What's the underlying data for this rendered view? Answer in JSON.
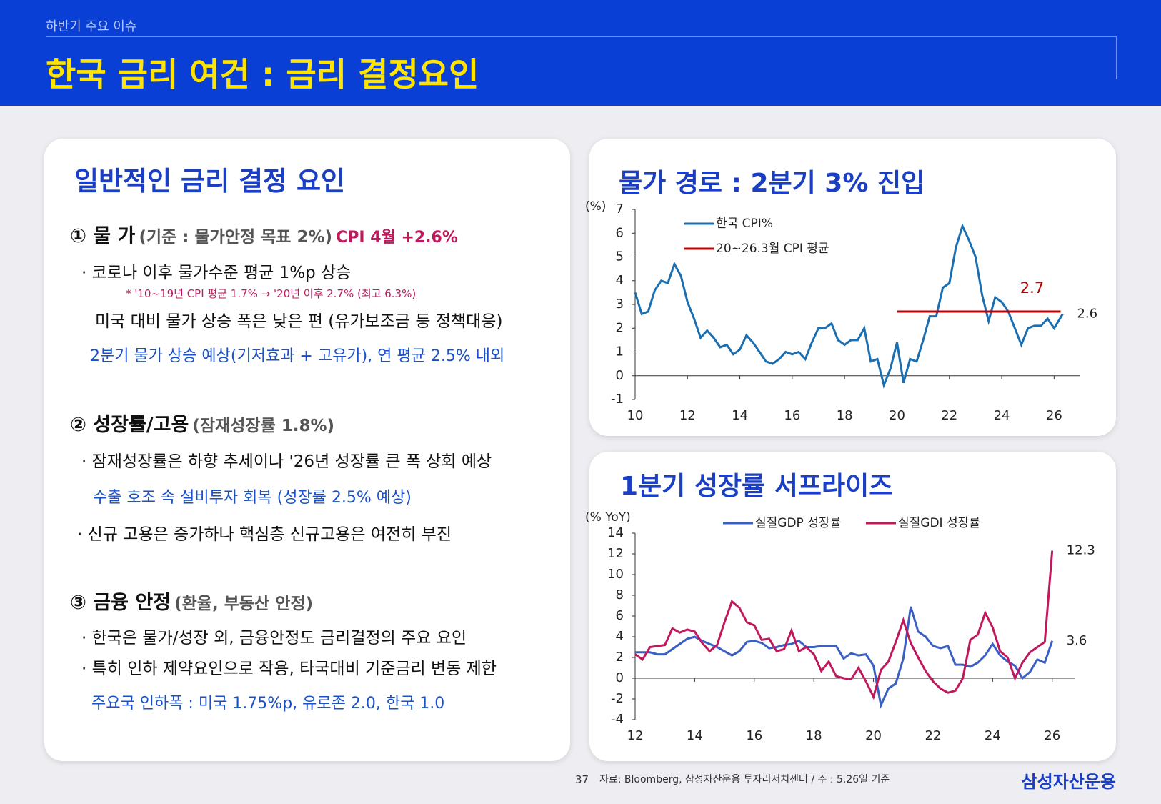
{
  "header": {
    "section": "하반기 주요 이슈",
    "title": "한국 금리 여건 : 금리 결정요인"
  },
  "left": {
    "title": "일반적인 금리 결정 요인",
    "s1": {
      "head": "① 물 가",
      "sub": "(기준 : 물가안정 목표 2%)",
      "note": "CPI 4월  +2.6%",
      "lines": [
        "· 코로나 이후 물가수준 평균 1%p 상승",
        "* '10~19년 CPI 평균 1.7% → '20년 이후 2.7% (최고 6.3%)",
        "미국 대비 물가 상승 폭은 낮은 편 (유가보조금 등 정책대응)",
        "2분기 물가 상승 예상(기저효과 + 고유가), 연 평균 2.5% 내외"
      ]
    },
    "s2": {
      "head": "② 성장률/고용",
      "sub": "(잠재성장률 1.8%)",
      "lines": [
        "· 잠재성장률은 하향 추세이나 '26년 성장률 큰 폭 상회 예상",
        "수출 호조 속 설비투자 회복 (성장률 2.5% 예상)",
        "· 신규 고용은 증가하나 핵심층 신규고용은 여전히 부진"
      ]
    },
    "s3": {
      "head": "③ 금융 안정",
      "sub": "(환율, 부동산 안정)",
      "lines": [
        "· 한국은 물가/성장 외, 금융안정도 금리결정의 주요 요인",
        "· 특히 인하 제약요인으로 작용, 타국대비 기준금리 변동 제한",
        "주요국 인하폭 : 미국 1.75%p, 유로존 2.0, 한국 1.0"
      ]
    }
  },
  "footer": {
    "page": "37",
    "source": "자료: Bloomberg, 삼성자산운용 투자리서치센터 / 주 : 5.26일 기준",
    "logo": "삼성자산운용"
  },
  "chart_data": [
    {
      "type": "line",
      "title": "물가 경로 : 2분기 3% 진입",
      "y_label": "(%)",
      "legend": "upper-left",
      "end_labels": true,
      "xlim": [
        10,
        27
      ],
      "xticks": [
        10,
        12,
        14,
        16,
        18,
        20,
        22,
        24,
        26
      ],
      "ylim": [
        -1,
        7
      ],
      "yticks": [
        -1,
        0,
        1,
        2,
        3,
        4,
        5,
        6,
        7
      ],
      "series": [
        {
          "name": "한국 CPI%",
          "color": "#1b6fb0",
          "x": [
            10,
            10.25,
            10.5,
            10.75,
            11,
            11.25,
            11.5,
            11.75,
            12,
            12.25,
            12.5,
            12.75,
            13,
            13.25,
            13.5,
            13.75,
            14,
            14.25,
            14.5,
            14.75,
            15,
            15.25,
            15.5,
            15.75,
            16,
            16.25,
            16.5,
            16.75,
            17,
            17.25,
            17.5,
            17.75,
            18,
            18.25,
            18.5,
            18.75,
            19,
            19.25,
            19.5,
            19.75,
            20,
            20.25,
            20.5,
            20.75,
            21,
            21.25,
            21.5,
            21.75,
            22,
            22.25,
            22.5,
            22.75,
            23,
            23.25,
            23.5,
            23.75,
            24,
            24.25,
            24.5,
            24.75,
            25,
            25.25,
            25.5,
            25.75,
            26,
            26.33
          ],
          "values": [
            3.5,
            2.6,
            2.7,
            3.6,
            4.0,
            3.9,
            4.7,
            4.2,
            3.1,
            2.4,
            1.6,
            1.9,
            1.6,
            1.2,
            1.3,
            0.9,
            1.1,
            1.7,
            1.4,
            1.0,
            0.6,
            0.5,
            0.7,
            1.0,
            0.9,
            1.0,
            0.7,
            1.4,
            2.0,
            2.0,
            2.2,
            1.5,
            1.3,
            1.5,
            1.5,
            2.0,
            0.6,
            0.7,
            -0.4,
            0.3,
            1.4,
            -0.3,
            0.7,
            0.6,
            1.5,
            2.5,
            2.5,
            3.7,
            3.9,
            5.4,
            6.3,
            5.7,
            5.0,
            3.4,
            2.3,
            3.3,
            3.1,
            2.7,
            2.0,
            1.3,
            2.0,
            2.1,
            2.1,
            2.4,
            2.0,
            2.6
          ]
        },
        {
          "name": "20~26.3월 CPI 평균",
          "color": "#c00000",
          "x": [
            20,
            26.25
          ],
          "values": [
            2.7,
            2.7
          ]
        }
      ]
    },
    {
      "type": "line",
      "title": "1분기 성장률 서프라이즈",
      "y_label": "(% YoY)",
      "legend": "upper-center",
      "end_labels": true,
      "xlim": [
        12,
        26.75
      ],
      "xticks": [
        12,
        14,
        16,
        18,
        20,
        22,
        24,
        26
      ],
      "ylim": [
        -4,
        14
      ],
      "yticks": [
        -4,
        -2,
        0,
        2,
        4,
        6,
        8,
        10,
        12,
        14
      ],
      "x": [
        12,
        12.25,
        12.5,
        12.75,
        13,
        13.25,
        13.5,
        13.75,
        14,
        14.25,
        14.5,
        14.75,
        15,
        15.25,
        15.5,
        15.75,
        16,
        16.25,
        16.5,
        16.75,
        17,
        17.25,
        17.5,
        17.75,
        18,
        18.25,
        18.5,
        18.75,
        19,
        19.25,
        19.5,
        19.75,
        20,
        20.25,
        20.5,
        20.75,
        21,
        21.25,
        21.5,
        21.75,
        22,
        22.25,
        22.5,
        22.75,
        23,
        23.25,
        23.5,
        23.75,
        24,
        24.25,
        24.5,
        24.75,
        25,
        25.25,
        25.5,
        25.75,
        26
      ],
      "series": [
        {
          "name": "실질GDP 성장률",
          "color": "#3a5fc4",
          "values": [
            2.5,
            2.5,
            2.5,
            2.3,
            2.3,
            2.8,
            3.3,
            3.8,
            4.0,
            3.6,
            3.3,
            3.0,
            2.6,
            2.2,
            2.6,
            3.5,
            3.6,
            3.4,
            2.9,
            3.0,
            3.2,
            3.3,
            3.6,
            3.0,
            3.0,
            3.1,
            3.1,
            3.1,
            1.9,
            2.4,
            2.2,
            2.3,
            1.2,
            -2.6,
            -1.0,
            -0.5,
            1.9,
            6.9,
            4.5,
            4.0,
            3.1,
            2.9,
            3.1,
            1.3,
            1.3,
            1.1,
            1.5,
            2.2,
            3.3,
            2.2,
            1.6,
            1.2,
            0.0,
            0.6,
            1.8,
            1.5,
            3.6
          ]
        },
        {
          "name": "실질GDI 성장률",
          "color": "#c0185c",
          "values": [
            2.3,
            1.8,
            3.0,
            3.1,
            3.2,
            4.8,
            4.4,
            4.7,
            4.5,
            3.4,
            2.6,
            3.2,
            5.4,
            7.4,
            6.8,
            5.4,
            5.1,
            3.7,
            3.8,
            2.6,
            2.8,
            4.6,
            2.6,
            3.0,
            2.3,
            0.7,
            1.6,
            0.2,
            0.0,
            -0.1,
            1.0,
            -0.3,
            -1.8,
            0.8,
            1.6,
            3.5,
            5.6,
            3.4,
            2.0,
            0.7,
            -0.3,
            -1.0,
            -1.4,
            -1.2,
            0.0,
            3.7,
            4.2,
            6.3,
            4.9,
            2.6,
            2.0,
            0.0,
            1.5,
            2.5,
            3.0,
            3.5,
            12.3
          ]
        }
      ]
    }
  ]
}
